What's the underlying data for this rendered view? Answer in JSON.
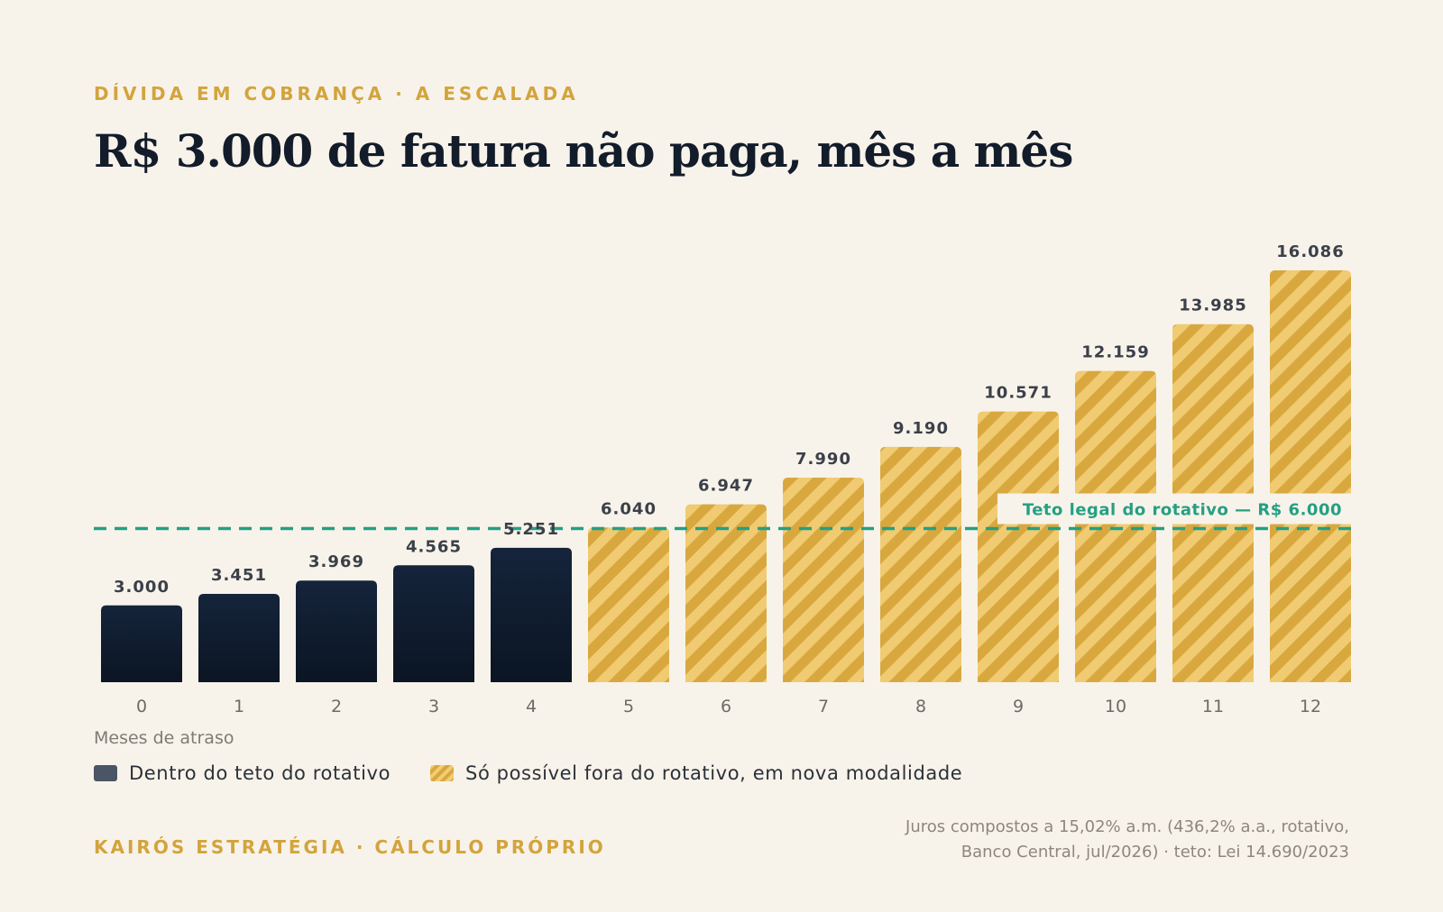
{
  "header": {
    "eyebrow": "DÍVIDA EM COBRANÇA · A ESCALADA",
    "title": "R$ 3.000 de fatura não paga, mês a mês"
  },
  "chart_data": {
    "type": "bar",
    "categories": [
      "0",
      "1",
      "2",
      "3",
      "4",
      "5",
      "6",
      "7",
      "8",
      "9",
      "10",
      "11",
      "12"
    ],
    "values": [
      3000,
      3451,
      3969,
      4565,
      5251,
      6040,
      6947,
      7990,
      9190,
      10571,
      12159,
      13985,
      16086
    ],
    "value_labels": [
      "3.000",
      "3.451",
      "3.969",
      "4.565",
      "5.251",
      "6.040",
      "6.947",
      "7.990",
      "9.190",
      "10.571",
      "12.159",
      "13.985",
      "16.086"
    ],
    "groups": [
      "inside",
      "inside",
      "inside",
      "inside",
      "inside",
      "outside",
      "outside",
      "outside",
      "outside",
      "outside",
      "outside",
      "outside",
      "outside"
    ],
    "series": [
      {
        "name": "Dentro do teto do rotativo",
        "color": "#13213a"
      },
      {
        "name": "Só possível fora do rotativo, em nova modalidade",
        "color": "#e3b452"
      }
    ],
    "xlabel": "Meses de atraso",
    "ylabel": "",
    "ylim": [
      0,
      16086
    ],
    "reference_line": {
      "value": 6000,
      "label": "Teto legal do rotativo — R$ 6.000",
      "color": "#23a083"
    },
    "grid": false,
    "legend_position": "bottom-left"
  },
  "legend": {
    "items": [
      {
        "label": "Dentro do teto do rotativo"
      },
      {
        "label": "Só possível fora do rotativo, em nova modalidade"
      }
    ]
  },
  "footer": {
    "source_left": "KAIRÓS ESTRATÉGIA · CÁLCULO PRÓPRIO",
    "note_line1": "Juros compostos a 15,02% a.m. (436,2% a.a., rotativo,",
    "note_line2": "Banco Central, jul/2026) · teto: Lei 14.690/2023"
  },
  "colors": {
    "background": "#f8f3ea",
    "accent_gold": "#d3a43d",
    "navy": "#13213a",
    "teal": "#23a083"
  }
}
